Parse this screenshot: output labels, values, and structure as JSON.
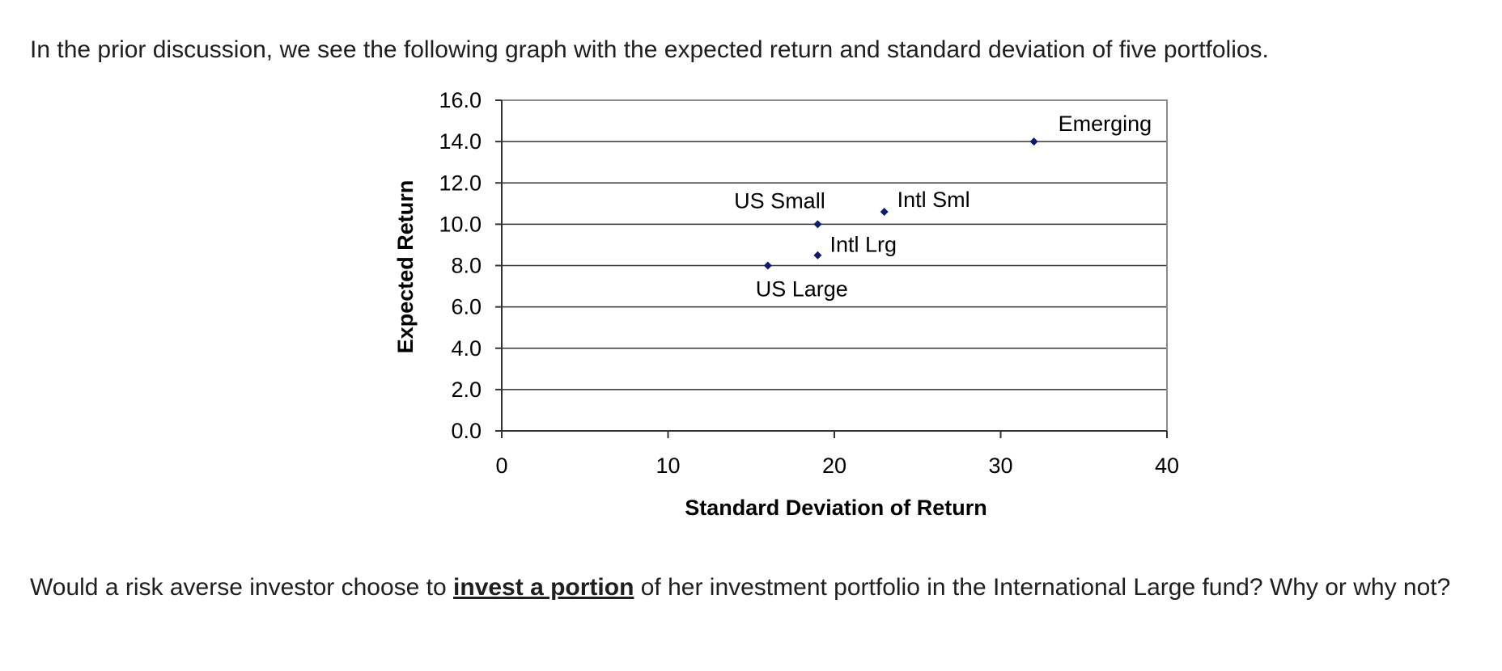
{
  "intro_text": "In the prior discussion, we see the following graph with the expected return and standard deviation of five portfolios.",
  "question": {
    "before": "Would a risk averse investor choose to ",
    "emphasis": "invest a portion",
    "after": " of her investment portfolio in the International Large fund? Why or why not?"
  },
  "chart_data": {
    "type": "scatter",
    "xlabel": "Standard Deviation of Return",
    "ylabel": "Expected Return",
    "xlim": [
      0,
      40
    ],
    "ylim": [
      0,
      16
    ],
    "x_ticks": [
      "0",
      "10",
      "20",
      "30",
      "40"
    ],
    "y_ticks": [
      "0.0",
      "2.0",
      "4.0",
      "6.0",
      "8.0",
      "10.0",
      "12.0",
      "14.0",
      "16.0"
    ],
    "grid": "horizontal",
    "marker_color": "#0d1a6e",
    "points": [
      {
        "label": "US Large",
        "x": 16,
        "y": 8.0
      },
      {
        "label": "US Small",
        "x": 19,
        "y": 10.0
      },
      {
        "label": "Intl Lrg",
        "x": 19,
        "y": 8.5
      },
      {
        "label": "Intl Sml",
        "x": 23,
        "y": 10.6
      },
      {
        "label": "Emerging",
        "x": 32,
        "y": 14.0
      }
    ]
  }
}
